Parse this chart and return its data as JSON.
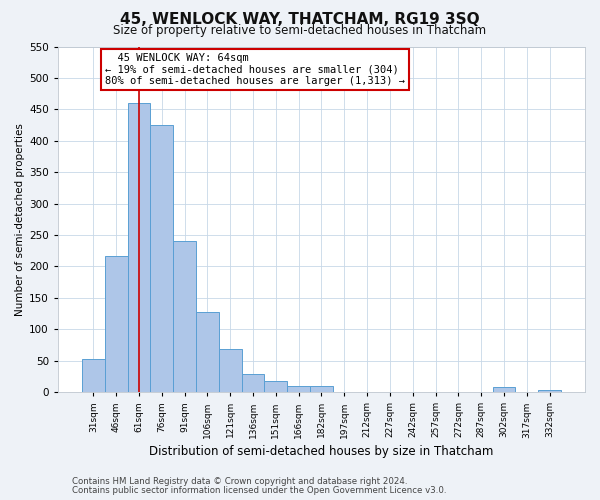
{
  "title": "45, WENLOCK WAY, THATCHAM, RG19 3SQ",
  "subtitle": "Size of property relative to semi-detached houses in Thatcham",
  "xlabel": "Distribution of semi-detached houses by size in Thatcham",
  "ylabel": "Number of semi-detached properties",
  "bin_labels": [
    "31sqm",
    "46sqm",
    "61sqm",
    "76sqm",
    "91sqm",
    "106sqm",
    "121sqm",
    "136sqm",
    "151sqm",
    "166sqm",
    "182sqm",
    "197sqm",
    "212sqm",
    "227sqm",
    "242sqm",
    "257sqm",
    "272sqm",
    "287sqm",
    "302sqm",
    "317sqm",
    "332sqm"
  ],
  "bin_values": [
    52,
    217,
    460,
    425,
    240,
    128,
    68,
    29,
    17,
    9,
    9,
    0,
    0,
    0,
    0,
    0,
    0,
    0,
    8,
    0,
    4
  ],
  "bar_color": "#aec6e8",
  "bar_edge_color": "#5a9fd4",
  "vline_x": 2.0,
  "vline_color": "#cc0000",
  "annotation_title": "45 WENLOCK WAY: 64sqm",
  "annotation_line1": "← 19% of semi-detached houses are smaller (304)",
  "annotation_line2": "80% of semi-detached houses are larger (1,313) →",
  "annotation_box_color": "#ffffff",
  "annotation_box_edge": "#cc0000",
  "ylim": [
    0,
    550
  ],
  "yticks": [
    0,
    50,
    100,
    150,
    200,
    250,
    300,
    350,
    400,
    450,
    500,
    550
  ],
  "footnote1": "Contains HM Land Registry data © Crown copyright and database right 2024.",
  "footnote2": "Contains public sector information licensed under the Open Government Licence v3.0.",
  "bg_color": "#eef2f7",
  "plot_bg_color": "#ffffff"
}
